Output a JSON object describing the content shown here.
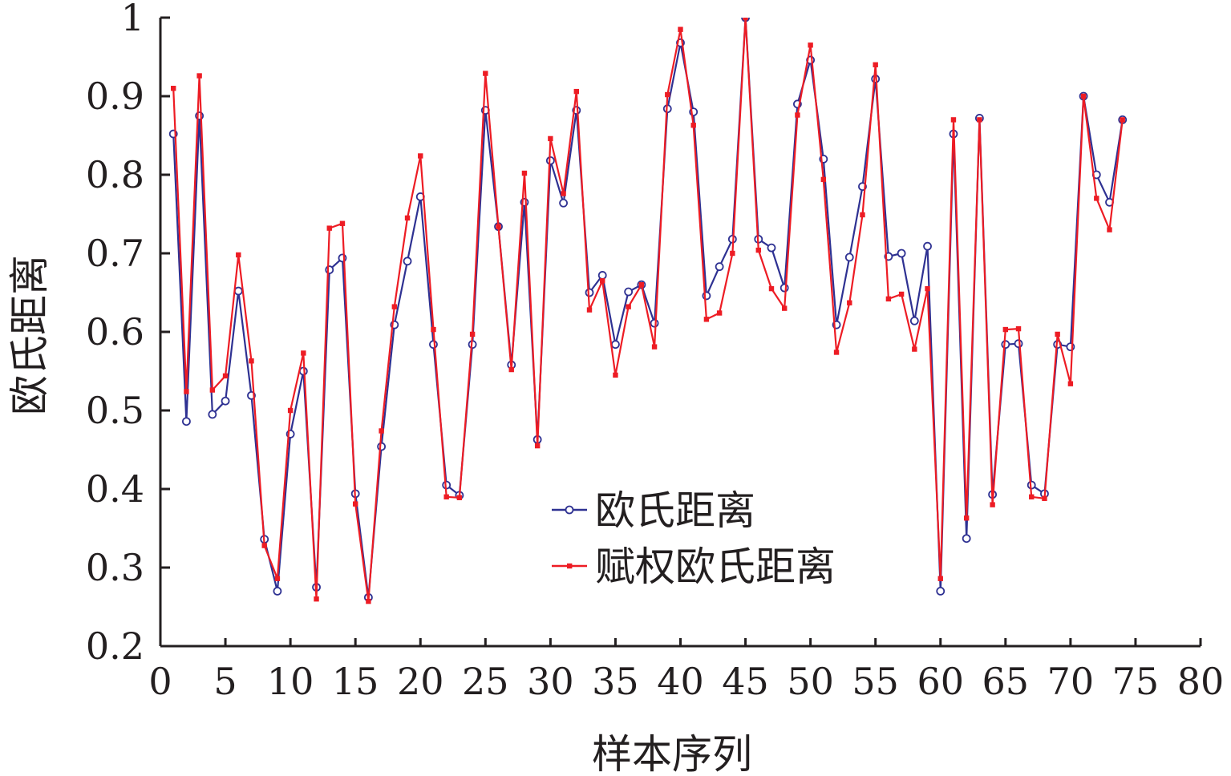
{
  "chart_data": {
    "type": "line",
    "title": "",
    "xlabel": "样本序列",
    "ylabel": "欧氏距离",
    "xlim": [
      0,
      80
    ],
    "ylim": [
      0.2,
      1.0
    ],
    "xticks": [
      "0",
      "5",
      "10",
      "15",
      "20",
      "25",
      "30",
      "35",
      "40",
      "45",
      "50",
      "55",
      "60",
      "65",
      "70",
      "75",
      "80"
    ],
    "yticks": [
      "0.2",
      "0.3",
      "0.4",
      "0.5",
      "0.6",
      "0.7",
      "0.8",
      "0.9",
      "1"
    ],
    "grid": false,
    "legend_position": "bottom-center",
    "x": [
      1,
      2,
      3,
      4,
      5,
      6,
      7,
      8,
      9,
      10,
      11,
      12,
      13,
      14,
      15,
      16,
      17,
      18,
      19,
      20,
      21,
      22,
      23,
      24,
      25,
      26,
      27,
      28,
      29,
      30,
      31,
      32,
      33,
      34,
      35,
      36,
      37,
      38,
      39,
      40,
      41,
      42,
      43,
      44,
      45,
      46,
      47,
      48,
      49,
      50,
      51,
      52,
      53,
      54,
      55,
      56,
      57,
      58,
      59,
      60,
      61,
      62,
      63,
      64,
      65,
      66,
      67,
      68,
      69,
      70,
      71,
      72,
      73,
      74
    ],
    "series": [
      {
        "name": "欧氏距离",
        "color": "#2e3192",
        "marker": "circle",
        "values": [
          0.852,
          0.486,
          0.875,
          0.495,
          0.512,
          0.652,
          0.519,
          0.336,
          0.27,
          0.47,
          0.55,
          0.275,
          0.679,
          0.694,
          0.394,
          0.262,
          0.454,
          0.609,
          0.69,
          0.772,
          0.584,
          0.405,
          0.392,
          0.584,
          0.882,
          0.734,
          0.558,
          0.765,
          0.463,
          0.818,
          0.764,
          0.882,
          0.65,
          0.672,
          0.584,
          0.651,
          0.66,
          0.611,
          0.884,
          0.968,
          0.88,
          0.646,
          0.683,
          0.718,
          1.0,
          0.718,
          0.707,
          0.656,
          0.89,
          0.946,
          0.82,
          0.609,
          0.695,
          0.785,
          0.922,
          0.696,
          0.7,
          0.614,
          0.709,
          0.27,
          0.852,
          0.337,
          0.872,
          0.393,
          0.584,
          0.585,
          0.405,
          0.394,
          0.584,
          0.581,
          0.9,
          0.8,
          0.765,
          0.87
        ]
      },
      {
        "name": "赋权欧氏距离",
        "color": "#ed1c24",
        "marker": "square",
        "values": [
          0.91,
          0.524,
          0.926,
          0.526,
          0.544,
          0.698,
          0.563,
          0.328,
          0.286,
          0.5,
          0.573,
          0.26,
          0.732,
          0.738,
          0.381,
          0.257,
          0.474,
          0.632,
          0.745,
          0.824,
          0.603,
          0.39,
          0.389,
          0.597,
          0.929,
          0.734,
          0.552,
          0.802,
          0.455,
          0.846,
          0.776,
          0.906,
          0.628,
          0.665,
          0.545,
          0.632,
          0.66,
          0.581,
          0.902,
          0.985,
          0.863,
          0.616,
          0.624,
          0.7,
          1.0,
          0.704,
          0.655,
          0.63,
          0.876,
          0.965,
          0.794,
          0.574,
          0.637,
          0.749,
          0.94,
          0.642,
          0.648,
          0.578,
          0.655,
          0.286,
          0.87,
          0.363,
          0.87,
          0.38,
          0.603,
          0.604,
          0.39,
          0.388,
          0.597,
          0.534,
          0.9,
          0.77,
          0.73,
          0.87
        ]
      }
    ]
  }
}
